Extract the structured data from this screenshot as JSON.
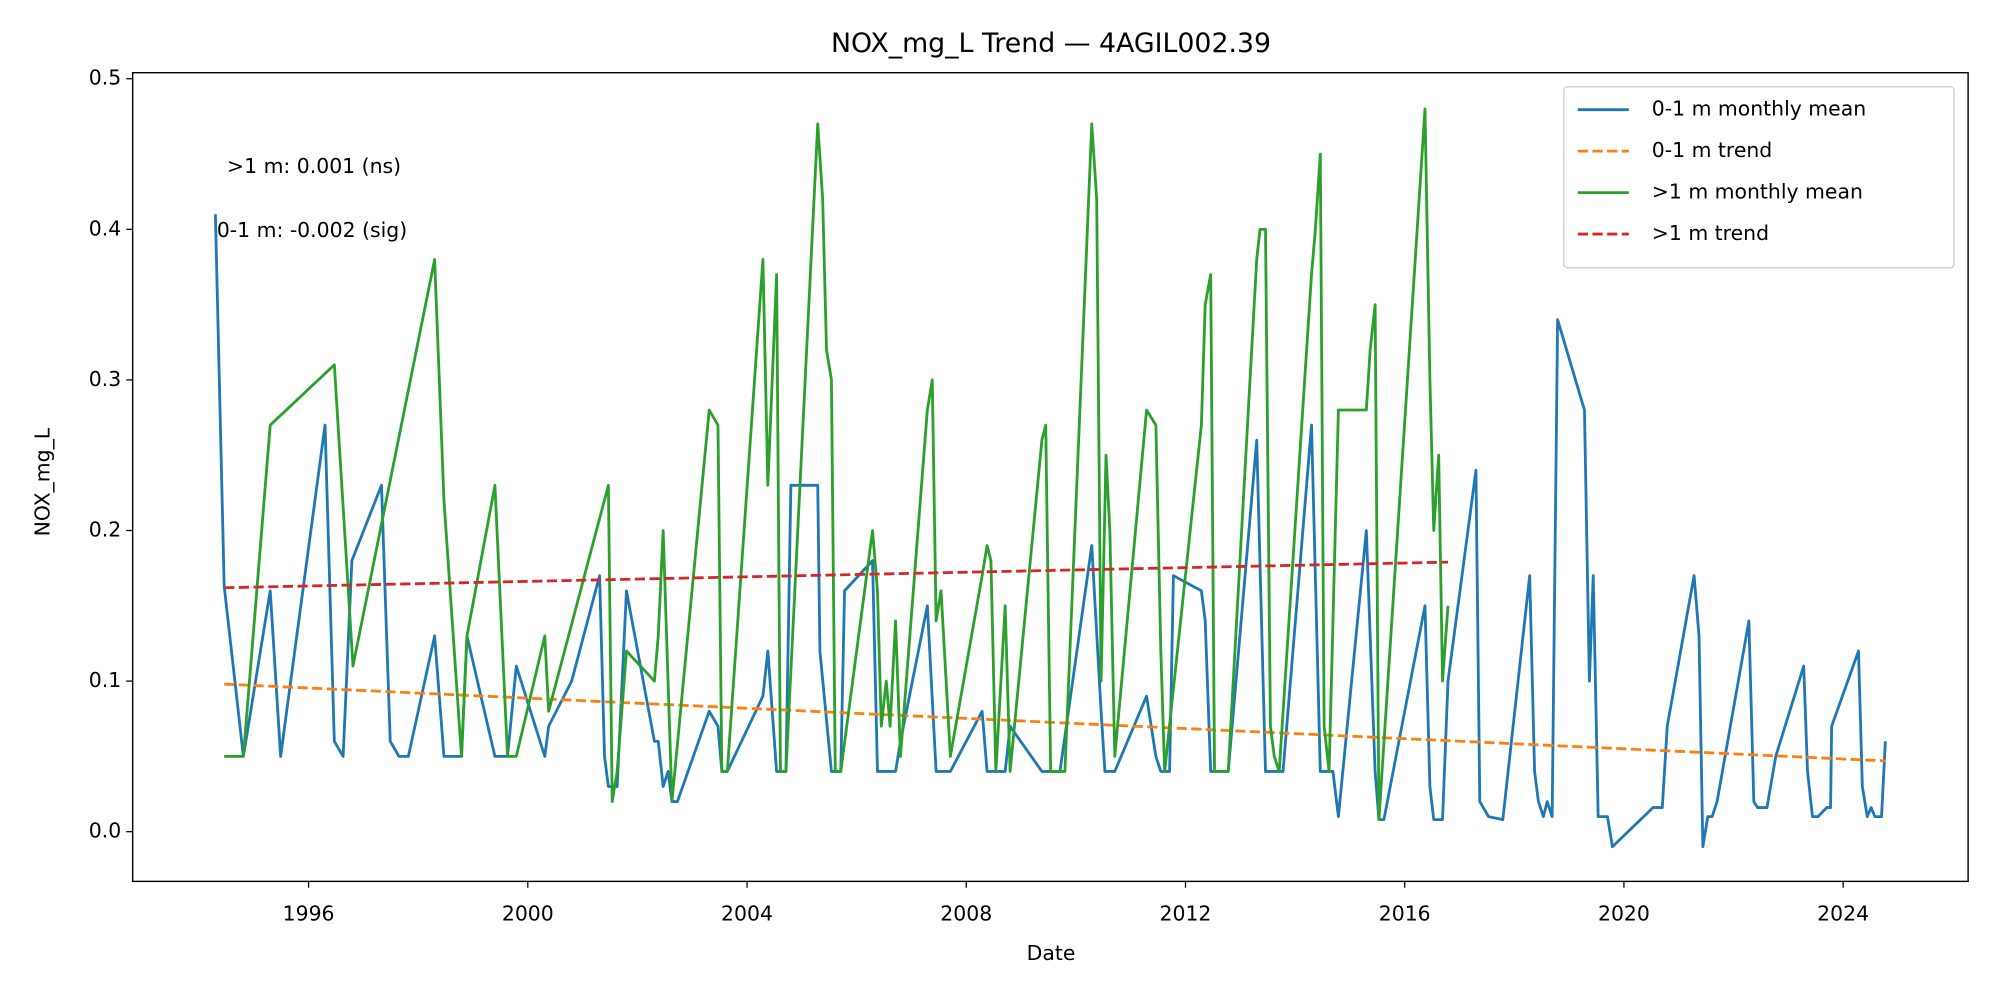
{
  "chart_data": {
    "type": "line",
    "title": "NOX_mg_L Trend — 4AGIL002.39",
    "x_label": "Date",
    "y_label": "NOX_mg_L",
    "xlim": [
      1992.79,
      2026.28
    ],
    "xticks": [
      1996,
      2000,
      2004,
      2008,
      2012,
      2016,
      2020,
      2024
    ],
    "ylim": [
      -0.033,
      0.504
    ],
    "yticks": [
      {
        "value": 0,
        "label": "0.0"
      },
      0.1,
      0.2,
      0.3,
      0.4,
      0.5
    ],
    "legend": "upper right",
    "annotations": [
      {
        "text": ">1 m: 0.001 (ns)"
      },
      {
        "text": "0-1 m: -0.002 (sig)"
      }
    ],
    "series": [
      {
        "name": "0-1 m monthly mean",
        "color": "#1f77b4",
        "linestyle": "solid",
        "x": [
          1994.3,
          1994.46,
          1994.81,
          1995.3,
          1995.49,
          1996.3,
          1996.47,
          1996.63,
          1996.79,
          1997.33,
          1997.49,
          1997.65,
          1997.82,
          1998.3,
          1998.47,
          1998.79,
          1998.89,
          1999.4,
          1999.63,
          1999.79,
          2000.31,
          2000.38,
          2000.8,
          2001.31,
          2001.4,
          2001.47,
          2001.63,
          2001.8,
          2002.31,
          2002.38,
          2002.47,
          2002.56,
          2002.63,
          2002.73,
          2003.31,
          2003.47,
          2003.54,
          2003.64,
          2004.29,
          2004.38,
          2004.54,
          2004.71,
          2004.8,
          2005.29,
          2005.33,
          2005.54,
          2005.71,
          2005.78,
          2006.29,
          2006.38,
          2006.71,
          2006.8,
          2007.29,
          2007.45,
          2007.71,
          2008.29,
          2008.38,
          2008.71,
          2008.8,
          2009.38,
          2009.71,
          2010.29,
          2010.46,
          2010.53,
          2010.71,
          2011.29,
          2011.46,
          2011.55,
          2011.71,
          2011.78,
          2012.29,
          2012.36,
          2012.46,
          2012.78,
          2013.3,
          2013.46,
          2013.78,
          2014.3,
          2014.46,
          2014.69,
          2014.79,
          2015.3,
          2015.46,
          2015.53,
          2015.62,
          2016.37,
          2016.46,
          2016.53,
          2016.69,
          2016.79,
          2017.3,
          2017.37,
          2017.53,
          2017.79,
          2018.28,
          2018.37,
          2018.44,
          2018.53,
          2018.6,
          2018.69,
          2018.79,
          2019.28,
          2019.37,
          2019.44,
          2019.53,
          2019.7,
          2019.79,
          2020.53,
          2020.7,
          2020.79,
          2021.28,
          2021.37,
          2021.44,
          2021.53,
          2021.61,
          2021.7,
          2022.28,
          2022.37,
          2022.44,
          2022.61,
          2022.77,
          2023.28,
          2023.35,
          2023.44,
          2023.54,
          2023.7,
          2023.77,
          2023.79,
          2024.28,
          2024.35,
          2024.44,
          2024.51,
          2024.58,
          2024.7,
          2024.77
        ],
        "values": [
          0.41,
          0.163,
          0.05,
          0.16,
          0.05,
          0.27,
          0.06,
          0.05,
          0.18,
          0.23,
          0.06,
          0.05,
          0.05,
          0.13,
          0.05,
          0.05,
          0.13,
          0.05,
          0.05,
          0.11,
          0.05,
          0.07,
          0.1,
          0.17,
          0.05,
          0.03,
          0.03,
          0.16,
          0.06,
          0.06,
          0.03,
          0.04,
          0.02,
          0.02,
          0.08,
          0.07,
          0.04,
          0.04,
          0.09,
          0.12,
          0.04,
          0.04,
          0.23,
          0.23,
          0.12,
          0.04,
          0.04,
          0.16,
          0.18,
          0.04,
          0.04,
          0.06,
          0.15,
          0.04,
          0.04,
          0.08,
          0.04,
          0.04,
          0.07,
          0.04,
          0.04,
          0.19,
          0.08,
          0.04,
          0.04,
          0.09,
          0.05,
          0.04,
          0.04,
          0.17,
          0.16,
          0.14,
          0.04,
          0.04,
          0.26,
          0.04,
          0.04,
          0.27,
          0.04,
          0.04,
          0.01,
          0.2,
          0.04,
          0.008,
          0.008,
          0.15,
          0.03,
          0.008,
          0.008,
          0.1,
          0.24,
          0.02,
          0.01,
          0.008,
          0.17,
          0.04,
          0.02,
          0.01,
          0.02,
          0.01,
          0.34,
          0.28,
          0.1,
          0.17,
          0.01,
          0.01,
          -0.01,
          0.016,
          0.016,
          0.07,
          0.17,
          0.13,
          -0.01,
          0.01,
          0.01,
          0.02,
          0.14,
          0.02,
          0.016,
          0.016,
          0.05,
          0.11,
          0.04,
          0.01,
          0.01,
          0.016,
          0.016,
          0.07,
          0.12,
          0.03,
          0.01,
          0.016,
          0.01,
          0.01,
          0.06
        ]
      },
      {
        "name": "0-1 m trend",
        "color": "#ff7f0e",
        "linestyle": "dashed",
        "x": [
          1994.46,
          2024.77
        ],
        "values": [
          0.098,
          0.047
        ]
      },
      {
        "name": ">1 m monthly mean",
        "color": "#2ca02c",
        "linestyle": "solid",
        "x": [
          1994.46,
          1994.81,
          1995.3,
          1996.47,
          1996.81,
          1998.3,
          1998.47,
          1998.79,
          1998.89,
          1999.4,
          1999.63,
          1999.79,
          2000.31,
          2000.38,
          2001.47,
          2001.54,
          2001.63,
          2001.8,
          2002.31,
          2002.38,
          2002.47,
          2002.63,
          2003.31,
          2003.47,
          2003.54,
          2003.64,
          2004.29,
          2004.38,
          2004.54,
          2004.61,
          2004.71,
          2005.29,
          2005.38,
          2005.45,
          2005.54,
          2005.61,
          2005.71,
          2006.29,
          2006.38,
          2006.45,
          2006.54,
          2006.61,
          2006.71,
          2006.8,
          2007.29,
          2007.38,
          2007.45,
          2007.54,
          2007.71,
          2008.29,
          2008.38,
          2008.45,
          2008.54,
          2008.71,
          2008.8,
          2009.38,
          2009.45,
          2009.54,
          2009.8,
          2010.29,
          2010.38,
          2010.46,
          2010.55,
          2010.62,
          2010.71,
          2011.29,
          2011.46,
          2011.55,
          2011.62,
          2012.29,
          2012.36,
          2012.46,
          2012.53,
          2012.78,
          2013.3,
          2013.36,
          2013.46,
          2013.55,
          2013.62,
          2013.71,
          2014.3,
          2014.37,
          2014.46,
          2014.53,
          2014.62,
          2014.79,
          2015.3,
          2015.37,
          2015.46,
          2015.53,
          2016.37,
          2016.46,
          2016.53,
          2016.62,
          2016.69,
          2016.79
        ],
        "values": [
          0.05,
          0.05,
          0.27,
          0.31,
          0.11,
          0.38,
          0.22,
          0.05,
          0.13,
          0.23,
          0.05,
          0.05,
          0.13,
          0.08,
          0.23,
          0.02,
          0.04,
          0.12,
          0.1,
          0.13,
          0.2,
          0.02,
          0.28,
          0.27,
          0.04,
          0.04,
          0.38,
          0.23,
          0.37,
          0.04,
          0.04,
          0.47,
          0.42,
          0.32,
          0.3,
          0.04,
          0.04,
          0.2,
          0.16,
          0.07,
          0.1,
          0.07,
          0.14,
          0.05,
          0.28,
          0.3,
          0.14,
          0.16,
          0.05,
          0.17,
          0.19,
          0.18,
          0.04,
          0.15,
          0.04,
          0.26,
          0.27,
          0.04,
          0.04,
          0.47,
          0.42,
          0.1,
          0.25,
          0.2,
          0.05,
          0.28,
          0.27,
          0.12,
          0.04,
          0.27,
          0.35,
          0.37,
          0.04,
          0.04,
          0.38,
          0.4,
          0.4,
          0.07,
          0.05,
          0.04,
          0.37,
          0.4,
          0.45,
          0.07,
          0.04,
          0.28,
          0.28,
          0.32,
          0.35,
          0.008,
          0.48,
          0.3,
          0.2,
          0.25,
          0.1,
          0.15
        ]
      },
      {
        "name": ">1 m trend",
        "color": "#d62728",
        "linestyle": "dashed",
        "x": [
          1994.46,
          2016.79
        ],
        "values": [
          0.162,
          0.179
        ]
      }
    ]
  }
}
